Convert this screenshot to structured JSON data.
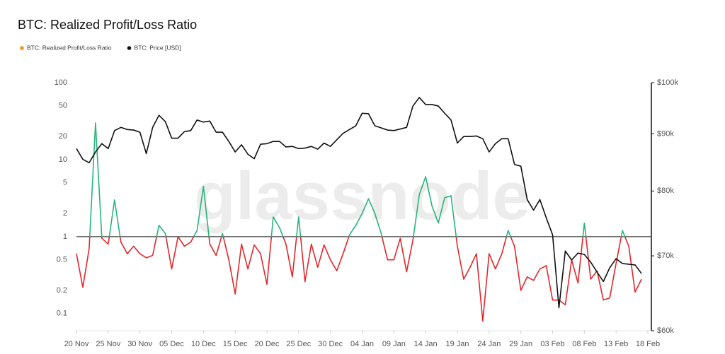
{
  "chart_data": {
    "type": "line",
    "title": "BTC: Realized Profit/Loss Ratio",
    "watermark": "glassnode",
    "x": [
      0,
      1,
      2,
      3,
      4,
      5,
      6,
      7,
      8,
      9,
      10,
      11,
      12,
      13,
      14,
      15,
      16,
      17,
      18,
      19,
      20,
      21,
      22,
      23,
      24,
      25,
      26,
      27,
      28,
      29,
      30,
      31,
      32,
      33,
      34,
      35,
      36,
      37,
      38,
      39,
      40,
      41,
      42,
      43,
      44,
      45,
      46,
      47,
      48,
      49,
      50,
      51,
      52,
      53,
      54,
      55,
      56,
      57,
      58,
      59,
      60,
      61,
      62,
      63,
      64,
      65,
      66,
      67,
      68,
      69,
      70,
      71,
      72,
      73,
      74,
      75,
      76,
      77,
      78,
      79,
      80,
      81,
      82,
      83,
      84,
      85,
      86,
      87,
      88,
      89
    ],
    "xlim": [
      0,
      90
    ],
    "xticks": [
      {
        "value": 0,
        "label": "20 Nov"
      },
      {
        "value": 5,
        "label": "25 Nov"
      },
      {
        "value": 10,
        "label": "30 Nov"
      },
      {
        "value": 15,
        "label": "05 Dec"
      },
      {
        "value": 20,
        "label": "10 Dec"
      },
      {
        "value": 25,
        "label": "15 Dec"
      },
      {
        "value": 30,
        "label": "20 Dec"
      },
      {
        "value": 35,
        "label": "25 Dec"
      },
      {
        "value": 40,
        "label": "30 Dec"
      },
      {
        "value": 45,
        "label": "04 Jan"
      },
      {
        "value": 50,
        "label": "09 Jan"
      },
      {
        "value": 55,
        "label": "14 Jan"
      },
      {
        "value": 60,
        "label": "19 Jan"
      },
      {
        "value": 65,
        "label": "24 Jan"
      },
      {
        "value": 70,
        "label": "29 Jan"
      },
      {
        "value": 75,
        "label": "03 Feb"
      },
      {
        "value": 80,
        "label": "08 Feb"
      },
      {
        "value": 85,
        "label": "13 Feb"
      },
      {
        "value": 90,
        "label": "18 Feb"
      }
    ],
    "ylim": [
      0.06,
      100
    ],
    "yticks": [
      100,
      50,
      20,
      10,
      5,
      2,
      1,
      0.5,
      0.2,
      0.1
    ],
    "y_log": true,
    "y2lim": [
      60000,
      100000
    ],
    "y2ticks": [
      {
        "value": 100000,
        "label": "$100k"
      },
      {
        "value": 90000,
        "label": "$90k"
      },
      {
        "value": 80000,
        "label": "$80k"
      },
      {
        "value": 70000,
        "label": "$70k"
      },
      {
        "value": 60000,
        "label": "$60k"
      }
    ],
    "y2_log": true,
    "reference_line": 1,
    "reference_color": "#555555",
    "legend": "top-left",
    "series": [
      {
        "name": "BTC: Realized Profit/Loss Ratio",
        "color": "#f7931a",
        "color_above": "#26b57c",
        "color_below": "#e3262b",
        "values": [
          0.6,
          0.22,
          0.7,
          30,
          0.95,
          0.8,
          3,
          0.85,
          0.6,
          0.75,
          0.6,
          0.53,
          0.57,
          1.4,
          1.1,
          0.38,
          1.0,
          0.75,
          0.85,
          1.2,
          4.5,
          0.8,
          0.57,
          1.1,
          0.5,
          0.18,
          0.8,
          0.38,
          0.78,
          0.6,
          0.24,
          1.8,
          1.3,
          0.8,
          0.3,
          1.8,
          0.26,
          0.8,
          0.4,
          0.78,
          0.5,
          0.36,
          0.6,
          1.05,
          1.4,
          2,
          3.1,
          2,
          1.1,
          0.5,
          0.5,
          0.95,
          0.35,
          0.9,
          3.5,
          6,
          2.5,
          1.5,
          3.2,
          3.4,
          0.75,
          0.28,
          0.4,
          0.6,
          0.08,
          0.6,
          0.38,
          0.6,
          1.2,
          0.75,
          0.2,
          0.3,
          0.27,
          0.38,
          0.42,
          0.15,
          0.15,
          0.13,
          0.5,
          0.25,
          1.5,
          0.28,
          0.36,
          0.15,
          0.16,
          0.45,
          1.2,
          0.75,
          0.19,
          0.28
        ]
      },
      {
        "name": "BTC: Price [USD]",
        "color": "#111111",
        "axis": "y2",
        "values": [
          87300,
          85400,
          84800,
          86700,
          88200,
          87300,
          90600,
          91200,
          90800,
          90700,
          90300,
          86400,
          91200,
          93500,
          92300,
          89200,
          89200,
          90400,
          90600,
          92600,
          92200,
          92400,
          90300,
          90300,
          88600,
          86700,
          88000,
          86300,
          85500,
          88100,
          88200,
          88600,
          88600,
          87600,
          87700,
          87300,
          87400,
          87700,
          87200,
          88300,
          87700,
          88900,
          90100,
          90800,
          91500,
          93900,
          93800,
          91500,
          91100,
          90700,
          90600,
          90900,
          91200,
          95300,
          97000,
          95600,
          95600,
          95300,
          93900,
          92600,
          88300,
          89500,
          89500,
          89600,
          89100,
          86700,
          88200,
          89100,
          89100,
          84500,
          84200,
          78600,
          76900,
          78600,
          75700,
          73100,
          62900,
          70700,
          69400,
          70400,
          70200,
          69100,
          67700,
          66400,
          68300,
          69600,
          68900,
          68800,
          68700,
          67500
        ]
      }
    ]
  }
}
